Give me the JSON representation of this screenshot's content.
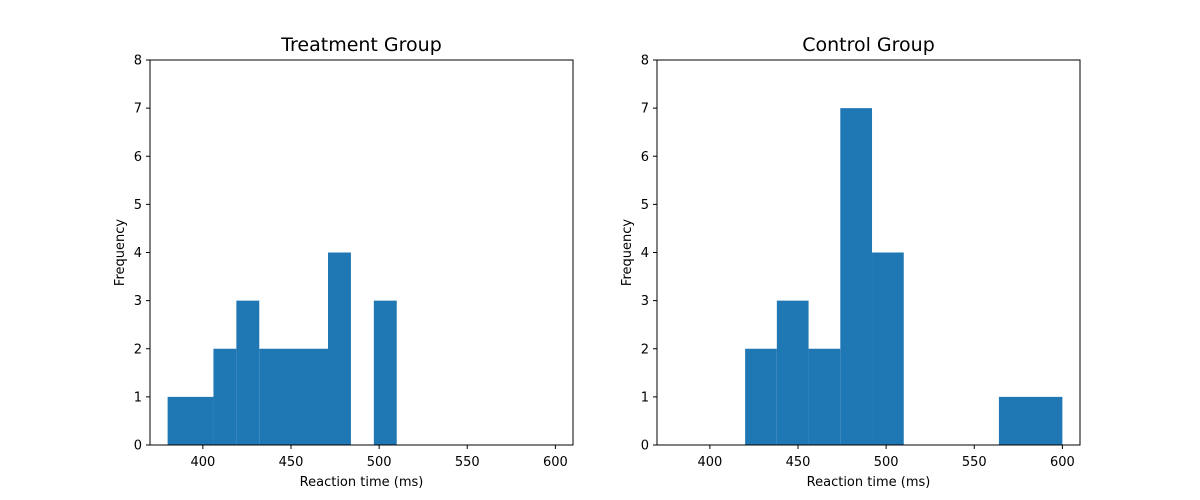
{
  "chart_data": [
    {
      "type": "bar",
      "title": "Treatment Group",
      "xlabel": "Reaction time (ms)",
      "ylabel": "Frequency",
      "xlim": [
        370,
        610
      ],
      "ylim": [
        0,
        8
      ],
      "xticks": [
        400,
        450,
        500,
        550,
        600
      ],
      "yticks": [
        0,
        1,
        2,
        3,
        4,
        5,
        6,
        7,
        8
      ],
      "color": "#1f77b4",
      "bins": [
        {
          "x0": 380,
          "x1": 406,
          "value": 1
        },
        {
          "x0": 406,
          "x1": 419,
          "value": 2
        },
        {
          "x0": 419,
          "x1": 432,
          "value": 3
        },
        {
          "x0": 432,
          "x1": 471,
          "value": 2
        },
        {
          "x0": 471,
          "x1": 484,
          "value": 4
        },
        {
          "x0": 484,
          "x1": 497,
          "value": 0
        },
        {
          "x0": 497,
          "x1": 510,
          "value": 3
        }
      ]
    },
    {
      "type": "bar",
      "title": "Control Group",
      "xlabel": "Reaction time (ms)",
      "ylabel": "Frequency",
      "xlim": [
        370,
        610
      ],
      "ylim": [
        0,
        8
      ],
      "xticks": [
        400,
        450,
        500,
        550,
        600
      ],
      "yticks": [
        0,
        1,
        2,
        3,
        4,
        5,
        6,
        7,
        8
      ],
      "color": "#1f77b4",
      "bins": [
        {
          "x0": 420,
          "x1": 438,
          "value": 2
        },
        {
          "x0": 438,
          "x1": 456,
          "value": 3
        },
        {
          "x0": 456,
          "x1": 474,
          "value": 2
        },
        {
          "x0": 474,
          "x1": 492,
          "value": 7
        },
        {
          "x0": 492,
          "x1": 510,
          "value": 4
        },
        {
          "x0": 510,
          "x1": 564,
          "value": 0
        },
        {
          "x0": 564,
          "x1": 600,
          "value": 1
        }
      ]
    }
  ]
}
